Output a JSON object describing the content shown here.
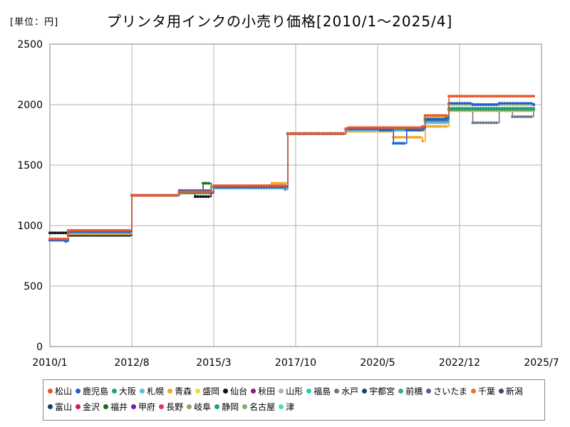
{
  "unit_label": "[単位：円]",
  "chart_data": {
    "type": "line",
    "title": "プリンタ用インクの小売り価格[2010/1～2025/4]",
    "xlabel": "",
    "ylabel": "",
    "x_range_months": [
      0,
      186
    ],
    "x_ticks": [
      {
        "label": "2010/1",
        "month": 0
      },
      {
        "label": "2012/8",
        "month": 31
      },
      {
        "label": "2015/3",
        "month": 62
      },
      {
        "label": "2017/10",
        "month": 93
      },
      {
        "label": "2020/5",
        "month": 124
      },
      {
        "label": "2022/12",
        "month": 155
      },
      {
        "label": "2025/7",
        "month": 186
      }
    ],
    "ylim": [
      0,
      2500
    ],
    "y_ticks": [
      0,
      500,
      1000,
      1500,
      2000,
      2500
    ],
    "grid": true,
    "legend_position": "bottom",
    "series": [
      {
        "name": "松山",
        "color": "#E8572A"
      },
      {
        "name": "鹿児島",
        "color": "#1F5FD0"
      },
      {
        "name": "大阪",
        "color": "#1FA37A"
      },
      {
        "name": "札幌",
        "color": "#5CB8E6"
      },
      {
        "name": "青森",
        "color": "#F2A81D"
      },
      {
        "name": "盛岡",
        "color": "#E8E030"
      },
      {
        "name": "仙台",
        "color": "#111111"
      },
      {
        "name": "秋田",
        "color": "#8A1A8A"
      },
      {
        "name": "山形",
        "color": "#A8B4BF"
      },
      {
        "name": "福島",
        "color": "#20D0B0"
      },
      {
        "name": "水戸",
        "color": "#6A7B8C"
      },
      {
        "name": "宇都宮",
        "color": "#1F3F5F"
      },
      {
        "name": "前橋",
        "color": "#3FAF6F"
      },
      {
        "name": "さいたま",
        "color": "#5A5AA0"
      },
      {
        "name": "千葉",
        "color": "#D8763A"
      },
      {
        "name": "新潟",
        "color": "#4A4070"
      },
      {
        "name": "富山",
        "color": "#1A3A6A"
      },
      {
        "name": "金沢",
        "color": "#D81840"
      },
      {
        "name": "福井",
        "color": "#1A6A1A"
      },
      {
        "name": "甲府",
        "color": "#7A1AAA"
      },
      {
        "name": "長野",
        "color": "#E0307A"
      },
      {
        "name": "岐阜",
        "color": "#90A070"
      },
      {
        "name": "静岡",
        "color": "#20A080"
      },
      {
        "name": "名古屋",
        "color": "#80B070"
      },
      {
        "name": "津",
        "color": "#40E0C0"
      }
    ],
    "price_levels": [
      {
        "from_month": 0,
        "to_month": 6,
        "value": 880
      },
      {
        "from_month": 7,
        "to_month": 30,
        "value": 950
      },
      {
        "from_month": 31,
        "to_month": 48,
        "value": 1250
      },
      {
        "from_month": 49,
        "to_month": 61,
        "value": 1280
      },
      {
        "from_month": 62,
        "to_month": 89,
        "value": 1320
      },
      {
        "from_month": 90,
        "to_month": 111,
        "value": 1760
      },
      {
        "from_month": 112,
        "to_month": 141,
        "value": 1800
      },
      {
        "from_month": 142,
        "to_month": 150,
        "value": 1900
      },
      {
        "from_month": 151,
        "to_month": 183,
        "value": 2000
      }
    ],
    "series_values": {
      "松山": [
        [
          0,
          890
        ],
        [
          6,
          890
        ],
        [
          7,
          960
        ],
        [
          30,
          960
        ],
        [
          31,
          1250
        ],
        [
          48,
          1250
        ],
        [
          49,
          1280
        ],
        [
          61,
          1280
        ],
        [
          62,
          1330
        ],
        [
          89,
          1330
        ],
        [
          90,
          1760
        ],
        [
          111,
          1760
        ],
        [
          112,
          1800
        ],
        [
          113,
          1810
        ],
        [
          141,
          1820
        ],
        [
          142,
          1910
        ],
        [
          150,
          1910
        ],
        [
          151,
          2070
        ],
        [
          183,
          2070
        ]
      ],
      "鹿児島": [
        [
          0,
          880
        ],
        [
          6,
          870
        ],
        [
          7,
          950
        ],
        [
          30,
          950
        ],
        [
          31,
          1250
        ],
        [
          48,
          1250
        ],
        [
          49,
          1290
        ],
        [
          61,
          1270
        ],
        [
          62,
          1320
        ],
        [
          89,
          1320
        ],
        [
          90,
          1760
        ],
        [
          111,
          1760
        ],
        [
          112,
          1800
        ],
        [
          125,
          1790
        ],
        [
          130,
          1680
        ],
        [
          135,
          1790
        ],
        [
          141,
          1810
        ],
        [
          142,
          1880
        ],
        [
          150,
          1890
        ],
        [
          151,
          2010
        ],
        [
          160,
          2000
        ],
        [
          170,
          2010
        ],
        [
          183,
          2000
        ]
      ],
      "仙台": [
        [
          0,
          940
        ],
        [
          6,
          940
        ],
        [
          7,
          920
        ],
        [
          30,
          920
        ],
        [
          31,
          1250
        ],
        [
          48,
          1250
        ],
        [
          49,
          1280
        ],
        [
          55,
          1240
        ],
        [
          61,
          1280
        ],
        [
          62,
          1320
        ],
        [
          89,
          1320
        ],
        [
          90,
          1760
        ],
        [
          111,
          1760
        ],
        [
          112,
          1790
        ],
        [
          141,
          1800
        ],
        [
          142,
          1880
        ],
        [
          150,
          1880
        ],
        [
          151,
          1960
        ],
        [
          183,
          1960
        ]
      ],
      "札幌": [
        [
          0,
          880
        ],
        [
          6,
          880
        ],
        [
          7,
          940
        ],
        [
          30,
          940
        ],
        [
          31,
          1250
        ],
        [
          48,
          1250
        ],
        [
          49,
          1270
        ],
        [
          61,
          1280
        ],
        [
          62,
          1310
        ],
        [
          89,
          1310
        ],
        [
          90,
          1760
        ],
        [
          111,
          1760
        ],
        [
          112,
          1790
        ],
        [
          141,
          1800
        ],
        [
          142,
          1850
        ],
        [
          150,
          1850
        ],
        [
          151,
          1960
        ],
        [
          183,
          1960
        ]
      ],
      "青森": [
        [
          0,
          880
        ],
        [
          6,
          880
        ],
        [
          7,
          930
        ],
        [
          30,
          930
        ],
        [
          31,
          1250
        ],
        [
          48,
          1250
        ],
        [
          49,
          1270
        ],
        [
          61,
          1270
        ],
        [
          62,
          1320
        ],
        [
          84,
          1350
        ],
        [
          89,
          1350
        ],
        [
          90,
          1760
        ],
        [
          111,
          1760
        ],
        [
          112,
          1780
        ],
        [
          130,
          1730
        ],
        [
          141,
          1700
        ],
        [
          142,
          1820
        ],
        [
          150,
          1820
        ],
        [
          151,
          1950
        ],
        [
          183,
          1950
        ]
      ],
      "水戸": [
        [
          0,
          880
        ],
        [
          6,
          880
        ],
        [
          7,
          930
        ],
        [
          30,
          930
        ],
        [
          31,
          1250
        ],
        [
          48,
          1250
        ],
        [
          49,
          1280
        ],
        [
          61,
          1280
        ],
        [
          62,
          1310
        ],
        [
          89,
          1300
        ],
        [
          90,
          1760
        ],
        [
          111,
          1760
        ],
        [
          112,
          1790
        ],
        [
          141,
          1790
        ],
        [
          142,
          1860
        ],
        [
          150,
          1860
        ],
        [
          151,
          1960
        ],
        [
          160,
          1850
        ],
        [
          170,
          1950
        ],
        [
          175,
          1900
        ],
        [
          183,
          1960
        ]
      ],
      "大阪": [
        [
          0,
          880
        ],
        [
          6,
          880
        ],
        [
          7,
          950
        ],
        [
          30,
          950
        ],
        [
          31,
          1250
        ],
        [
          48,
          1250
        ],
        [
          49,
          1270
        ],
        [
          61,
          1270
        ],
        [
          62,
          1320
        ],
        [
          89,
          1320
        ],
        [
          90,
          1760
        ],
        [
          111,
          1760
        ],
        [
          112,
          1800
        ],
        [
          141,
          1800
        ],
        [
          142,
          1880
        ],
        [
          150,
          1880
        ],
        [
          151,
          1960
        ],
        [
          183,
          1960
        ]
      ],
      "静岡": [
        [
          0,
          880
        ],
        [
          6,
          880
        ],
        [
          7,
          940
        ],
        [
          30,
          940
        ],
        [
          31,
          1250
        ],
        [
          48,
          1250
        ],
        [
          49,
          1270
        ],
        [
          61,
          1270
        ],
        [
          62,
          1320
        ],
        [
          89,
          1320
        ],
        [
          90,
          1760
        ],
        [
          111,
          1760
        ],
        [
          112,
          1790
        ],
        [
          141,
          1790
        ],
        [
          142,
          1870
        ],
        [
          150,
          1870
        ],
        [
          151,
          1970
        ],
        [
          183,
          1970
        ]
      ],
      "福井": [
        [
          0,
          880
        ],
        [
          6,
          880
        ],
        [
          7,
          920
        ],
        [
          30,
          920
        ],
        [
          31,
          1250
        ],
        [
          48,
          1250
        ],
        [
          49,
          1270
        ],
        [
          58,
          1350
        ],
        [
          61,
          1270
        ],
        [
          62,
          1320
        ],
        [
          89,
          1320
        ],
        [
          90,
          1760
        ],
        [
          111,
          1760
        ],
        [
          112,
          1790
        ],
        [
          141,
          1790
        ],
        [
          142,
          1870
        ],
        [
          150,
          1870
        ],
        [
          151,
          1960
        ],
        [
          183,
          1960
        ]
      ]
    }
  }
}
